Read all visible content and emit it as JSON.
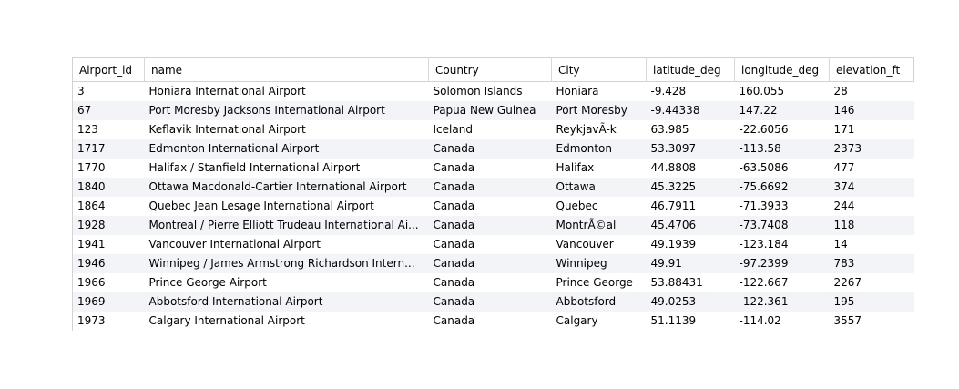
{
  "table": {
    "columns": [
      "Airport_id",
      "name",
      "Country",
      "City",
      "latitude_deg",
      "longitude_deg",
      "elevation_ft"
    ],
    "rows": [
      [
        "3",
        "Honiara International Airport",
        "Solomon Islands",
        "Honiara",
        "-9.428",
        "160.055",
        "28"
      ],
      [
        "67",
        "Port Moresby Jacksons International Airport",
        "Papua New Guinea",
        "Port Moresby",
        "-9.44338",
        "147.22",
        "146"
      ],
      [
        "123",
        "Keflavik International Airport",
        "Iceland",
        "ReykjavÃ-k",
        "63.985",
        "-22.6056",
        "171"
      ],
      [
        "1717",
        "Edmonton International Airport",
        "Canada",
        "Edmonton",
        "53.3097",
        "-113.58",
        "2373"
      ],
      [
        "1770",
        "Halifax / Stanfield International Airport",
        "Canada",
        "Halifax",
        "44.8808",
        "-63.5086",
        "477"
      ],
      [
        "1840",
        "Ottawa Macdonald-Cartier International Airport",
        "Canada",
        "Ottawa",
        "45.3225",
        "-75.6692",
        "374"
      ],
      [
        "1864",
        "Quebec Jean Lesage International Airport",
        "Canada",
        "Quebec",
        "46.7911",
        "-71.3933",
        "244"
      ],
      [
        "1928",
        "Montreal / Pierre Elliott Trudeau International Ai...",
        "Canada",
        "MontrÃ©al",
        "45.4706",
        "-73.7408",
        "118"
      ],
      [
        "1941",
        "Vancouver International Airport",
        "Canada",
        "Vancouver",
        "49.1939",
        "-123.184",
        "14"
      ],
      [
        "1946",
        "Winnipeg / James Armstrong Richardson Intern...",
        "Canada",
        "Winnipeg",
        "49.91",
        "-97.2399",
        "783"
      ],
      [
        "1966",
        "Prince George Airport",
        "Canada",
        "Prince George",
        "53.88431",
        "-122.667",
        "2267"
      ],
      [
        "1969",
        "Abbotsford International Airport",
        "Canada",
        "Abbotsford",
        "49.0253",
        "-122.361",
        "195"
      ],
      [
        "1973",
        "Calgary International Airport",
        "Canada",
        "Calgary",
        "51.1139",
        "-114.02",
        "3557"
      ]
    ]
  }
}
